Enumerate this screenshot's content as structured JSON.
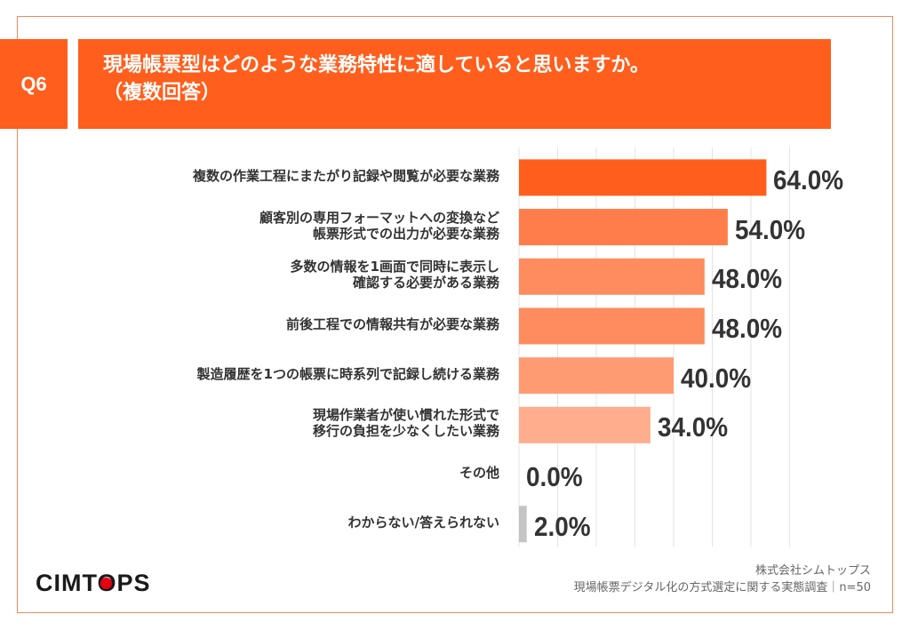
{
  "header": {
    "question_number": "Q6",
    "title_line1": "現場帳票型はどのような業務特性に適していると思いますか。",
    "title_line2": "（複数回答）"
  },
  "colors": {
    "accent": "#ff5e1c",
    "frame": "#ef8a5c",
    "gridline": "#e3e3e3",
    "text": "#333333"
  },
  "chart_data": {
    "type": "bar",
    "orientation": "horizontal",
    "title": "現場帳票型はどのような業務特性に適していると思いますか。（複数回答）",
    "xlabel": "",
    "ylabel": "",
    "xlim": [
      0,
      70
    ],
    "grid": true,
    "grid_step": 10,
    "unit": "%",
    "categories": [
      "複数の作業工程にまたがり記録や閲覧が必要な業務",
      "顧客別の専用フォーマットへの変換など\n帳票形式での出力が必要な業務",
      "多数の情報を1画面で同時に表示し\n確認する必要がある業務",
      "前後工程での情報共有が必要な業務",
      "製造履歴を1つの帳票に時系列で記録し続ける業務",
      "現場作業者が使い慣れた形式で\n移行の負担を少なくしたい業務",
      "その他",
      "わからない/答えられない"
    ],
    "values": [
      64.0,
      54.0,
      48.0,
      48.0,
      40.0,
      34.0,
      0.0,
      2.0
    ],
    "value_labels": [
      "64.0%",
      "54.0%",
      "48.0%",
      "48.0%",
      "40.0%",
      "34.0%",
      "0.0%",
      "2.0%"
    ],
    "bar_colors": [
      "#ff5e1c",
      "#ff7d4a",
      "#ff8c5e",
      "#ff8c5e",
      "#ff9b73",
      "#ffad8c",
      "#cccccc",
      "#c4c4c4"
    ]
  },
  "footer": {
    "logo": "CIMTOPS",
    "company": "株式会社シムトップス",
    "survey": "現場帳票デジタル化の方式選定に関する実態調査｜n=50"
  }
}
